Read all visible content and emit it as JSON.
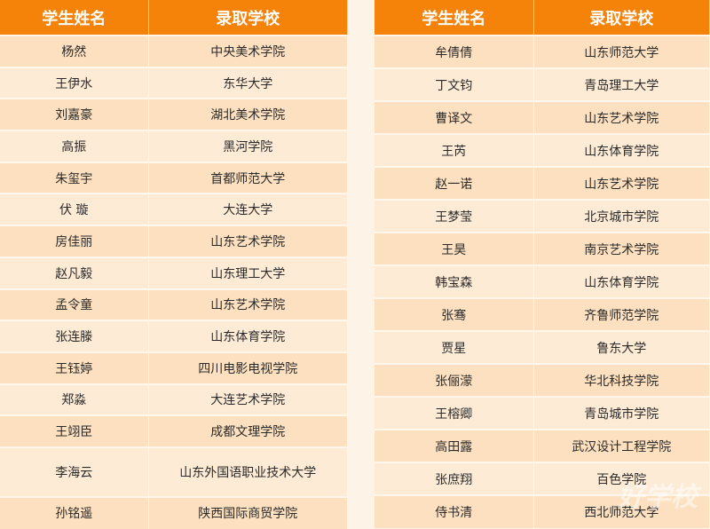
{
  "headers": {
    "name": "学生姓名",
    "school": "录取学校"
  },
  "colors": {
    "header": "#f5830a",
    "row_odd": "#fde0bf",
    "row_even": "#fdebd6"
  },
  "left": [
    {
      "name": "杨然",
      "school": "中央美术学院"
    },
    {
      "name": "王伊水",
      "school": "东华大学"
    },
    {
      "name": "刘嘉豪",
      "school": "湖北美术学院"
    },
    {
      "name": "高振",
      "school": "黑河学院"
    },
    {
      "name": "朱玺宇",
      "school": "首都师范大学"
    },
    {
      "name": "伏 璇",
      "school": "大连大学"
    },
    {
      "name": "房佳丽",
      "school": "山东艺术学院"
    },
    {
      "name": "赵凡毅",
      "school": "山东理工大学"
    },
    {
      "name": "孟令童",
      "school": "山东艺术学院"
    },
    {
      "name": "张连滕",
      "school": "山东体育学院"
    },
    {
      "name": "王钰婷",
      "school": "四川电影电视学院"
    },
    {
      "name": "郑淼",
      "school": "大连艺术学院"
    },
    {
      "name": "王翊臣",
      "school": "成都文理学院"
    },
    {
      "name": "李海云",
      "school": "山东外国语职业技术大学"
    },
    {
      "name": "孙铭遥",
      "school": "陕西国际商贸学院"
    }
  ],
  "right": [
    {
      "name": "牟倩倩",
      "school": "山东师范大学"
    },
    {
      "name": "丁文钧",
      "school": "青岛理工大学"
    },
    {
      "name": "曹译文",
      "school": "山东艺术学院"
    },
    {
      "name": "王芮",
      "school": "山东体育学院"
    },
    {
      "name": "赵一诺",
      "school": "山东艺术学院"
    },
    {
      "name": "王梦莹",
      "school": "北京城市学院"
    },
    {
      "name": "王昊",
      "school": "南京艺术学院"
    },
    {
      "name": "韩宝森",
      "school": "山东体育学院"
    },
    {
      "name": "张骞",
      "school": "齐鲁师范学院"
    },
    {
      "name": "贾星",
      "school": "鲁东大学"
    },
    {
      "name": "张俪濛",
      "school": "华北科技学院"
    },
    {
      "name": "王榕卿",
      "school": "青岛城市学院"
    },
    {
      "name": "高田露",
      "school": "武汉设计工程学院"
    },
    {
      "name": "张庶翔",
      "school": "百色学院"
    },
    {
      "name": "侍书清",
      "school": "西北师范大学"
    }
  ],
  "watermark": "好学校"
}
